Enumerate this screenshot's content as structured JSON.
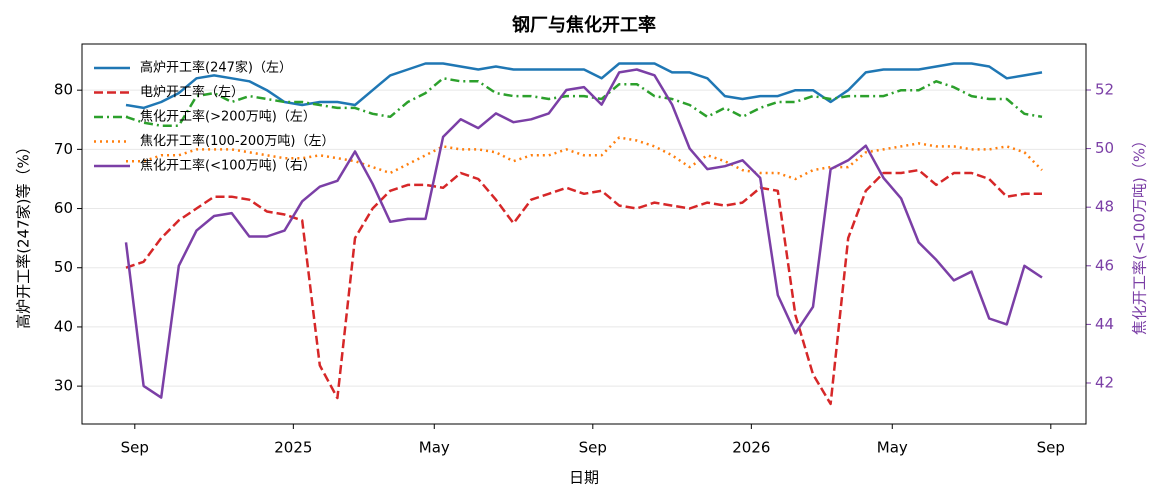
{
  "chart_data": {
    "type": "line",
    "title": "钢厂与焦化开工率",
    "xlabel": "日期",
    "ylabel": "高炉开工率(247家)等（%）",
    "y2label": "焦化开工率(<100万吨)（%）",
    "x": [
      "2024-08",
      "2024-09",
      "2024-09",
      "2024-10",
      "2024-10",
      "2024-11",
      "2024-11",
      "2024-12",
      "2024-12",
      "2024-12",
      "2025-01",
      "2025-01",
      "2025-02",
      "2025-02",
      "2025-03",
      "2025-03",
      "2025-04",
      "2025-04",
      "2025-05",
      "2025-05",
      "2025-06",
      "2025-06",
      "2025-06",
      "2025-07",
      "2025-07",
      "2025-08",
      "2025-08",
      "2025-09",
      "2025-09",
      "2025-10",
      "2025-10",
      "2025-11",
      "2025-11",
      "2025-11",
      "2025-12",
      "2025-12",
      "2026-01",
      "2026-01",
      "2026-02",
      "2026-02",
      "2026-03",
      "2026-03",
      "2026-04",
      "2026-04",
      "2026-05",
      "2026-05",
      "2026-05",
      "2026-06",
      "2026-06",
      "2026-07",
      "2026-07",
      "2026-08",
      "2026-08"
    ],
    "xticks": [
      {
        "value": "2024-09",
        "label": "Sep"
      },
      {
        "value": "2025-01",
        "label": "2025"
      },
      {
        "value": "2025-05",
        "label": "May"
      },
      {
        "value": "2025-09",
        "label": "Sep"
      },
      {
        "value": "2026-01",
        "label": "2026"
      },
      {
        "value": "2026-05",
        "label": "May"
      },
      {
        "value": "2026-09",
        "label": "Sep"
      }
    ],
    "ylim": [
      23.6,
      87.8
    ],
    "yticks": [
      30,
      40,
      50,
      60,
      70,
      80
    ],
    "y2lim": [
      40.6,
      53.57
    ],
    "y2ticks": [
      42,
      44,
      46,
      48,
      50,
      52
    ],
    "y2color": "#7b3fa6",
    "grid": true,
    "legend": "upper left",
    "series": [
      {
        "name": "高炉开工率(247家)（左）",
        "color": "#1f77b4",
        "linestyle": "solid",
        "values": [
          77.5,
          77,
          78,
          79.5,
          82,
          82.5,
          82,
          81.5,
          80,
          78,
          77.5,
          78,
          78,
          77.5,
          80,
          82.5,
          83.5,
          84.5,
          84.5,
          84,
          83.5,
          84,
          83.5,
          83.5,
          83.5,
          83.5,
          83.5,
          82,
          84.5,
          84.5,
          84.5,
          83,
          83,
          82,
          79,
          78.5,
          79,
          79,
          80,
          80,
          78,
          80,
          83,
          83.5,
          83.5,
          83.5,
          84,
          84.5,
          84.5,
          84,
          82,
          82.5,
          83
        ]
      },
      {
        "name": "电炉开工率（左）",
        "color": "#d62728",
        "linestyle": "dashed",
        "values": [
          50,
          51,
          55,
          58,
          60,
          62,
          62,
          61.5,
          59.5,
          59,
          58,
          33.5,
          28,
          55,
          60,
          63,
          64,
          64,
          63.5,
          66,
          65,
          61.5,
          57.5,
          61.5,
          62.5,
          63.5,
          62.5,
          63,
          60.5,
          60,
          61,
          60.5,
          60,
          61,
          60.5,
          61,
          63.5,
          63,
          42,
          32,
          27,
          55,
          63,
          66,
          66,
          66.5,
          64,
          66,
          66,
          65,
          62,
          62.5,
          62.5
        ]
      },
      {
        "name": "焦化开工率(>200万吨)（左）",
        "color": "#2ca02c",
        "linestyle": "dashdot",
        "values": [
          75.5,
          74.5,
          74,
          74,
          79,
          79.5,
          78,
          79,
          78.5,
          78,
          78,
          77.5,
          77,
          77,
          76,
          75.5,
          78,
          79.5,
          82,
          81.5,
          81.5,
          79.5,
          79,
          79,
          78.5,
          79,
          79,
          78.5,
          81,
          81,
          79,
          78.5,
          77.5,
          75.5,
          77,
          75.5,
          77,
          78,
          78,
          79,
          78.5,
          79,
          79,
          79,
          80,
          80,
          81.5,
          80.5,
          79,
          78.5,
          78.5,
          76,
          75.5
        ]
      },
      {
        "name": "焦化开工率(100-200万吨)（左）",
        "color": "#ff7f0e",
        "linestyle": "dotted",
        "values": [
          68,
          68,
          69,
          69,
          70,
          70,
          70,
          69.5,
          69,
          68.5,
          68.5,
          69,
          68.5,
          68,
          67,
          66,
          67.5,
          69,
          70.5,
          70,
          70,
          69.5,
          68,
          69,
          69,
          70,
          69,
          69,
          72,
          71.5,
          70.5,
          69,
          67,
          69,
          68,
          66.5,
          66,
          66,
          65,
          66.5,
          67,
          67,
          69.5,
          70,
          70.5,
          71,
          70.5,
          70.5,
          70,
          70,
          70.5,
          69.5,
          66.5
        ]
      },
      {
        "name": "焦化开工率(<100万吨)（右）",
        "color": "#7b3fa6",
        "linestyle": "solid",
        "axis": "y2",
        "values": [
          46.8,
          41.9,
          41.5,
          46,
          47.2,
          47.7,
          47.8,
          47,
          47,
          47.2,
          48.2,
          48.7,
          48.9,
          49.9,
          48.8,
          47.5,
          47.6,
          47.6,
          50.4,
          51,
          50.7,
          51.2,
          50.9,
          51,
          51.2,
          52,
          52.1,
          51.5,
          52.6,
          52.7,
          52.5,
          51.5,
          50,
          49.3,
          49.4,
          49.6,
          49,
          45,
          43.7,
          44.6,
          49.3,
          49.6,
          50.1,
          49,
          48.3,
          46.8,
          46.2,
          45.5,
          45.8,
          44.2,
          44,
          46,
          45.6
        ]
      }
    ]
  }
}
